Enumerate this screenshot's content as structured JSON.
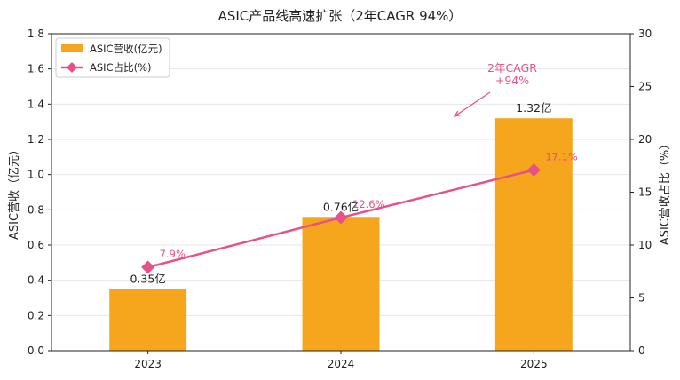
{
  "chart_data": {
    "type": "bar",
    "title": "ASIC产品线高速扩张（2年CAGR 94%）",
    "categories": [
      "2023",
      "2024",
      "2025"
    ],
    "series": [
      {
        "name": "ASIC营收(亿元)",
        "type": "bar",
        "axis": "left",
        "values": [
          0.35,
          0.76,
          1.32
        ],
        "labels": [
          "0.35亿",
          "0.76亿",
          "1.32亿"
        ],
        "color": "#F5A61D"
      },
      {
        "name": "ASIC占比(%)",
        "type": "line",
        "axis": "right",
        "values": [
          7.9,
          12.6,
          17.1
        ],
        "labels": [
          "7.9%",
          "12.6%",
          "17.1%"
        ],
        "color": "#E8508A"
      }
    ],
    "ylabel": "ASIC营收（亿元）",
    "ylabel_right": "ASIC营收占比（%）",
    "ylim": [
      0,
      1.8
    ],
    "yticks": [
      "0.0",
      "0.2",
      "0.4",
      "0.6",
      "0.8",
      "1.0",
      "1.2",
      "1.4",
      "1.6",
      "1.8"
    ],
    "ylim_right": [
      0,
      30
    ],
    "yticks_right": [
      "0",
      "5",
      "10",
      "15",
      "20",
      "25",
      "30"
    ],
    "grid": true,
    "legend_position": "top-left",
    "annotation": {
      "lines": [
        "2年CAGR",
        "+94%"
      ],
      "color": "#E8508A"
    }
  }
}
